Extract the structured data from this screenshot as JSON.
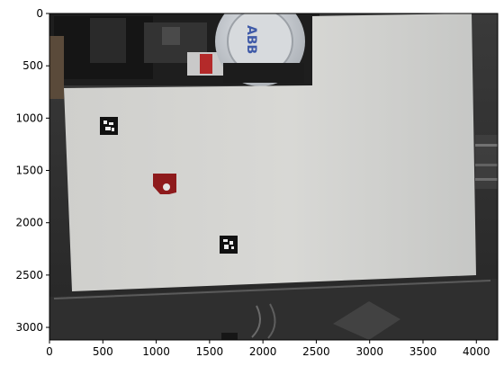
{
  "figure": {
    "type": "image_plot",
    "description_kind": "matplotlib imshow of overhead camera photo",
    "axes": {
      "x_ticks": [
        "0",
        "500",
        "1000",
        "1500",
        "2000",
        "2500",
        "3000",
        "3500",
        "4000"
      ],
      "y_ticks": [
        "0",
        "500",
        "1000",
        "1500",
        "2000",
        "2500",
        "3000"
      ],
      "x_range": [
        0,
        4200
      ],
      "y_range": [
        3120,
        0
      ],
      "x_tick_values": [
        0,
        500,
        1000,
        1500,
        2000,
        2500,
        3000,
        3500,
        4000
      ],
      "y_tick_values": [
        0,
        500,
        1000,
        1500,
        2000,
        2500,
        3000
      ]
    },
    "objects": {
      "paper_sheet": "white paper sheet",
      "robot_base": "robot arm base",
      "marker_1": "fiducial marker",
      "marker_2": "fiducial marker",
      "marker_3": "fiducial marker (edge)",
      "red_object": "red object with hole"
    },
    "colors": {
      "background_dark": "#2b2b2b",
      "paper": "#d9d9d6",
      "red_object": "#8e1a1c",
      "robot_light": "#cfd3d8",
      "robot_accent": "#3f5aa8"
    }
  }
}
